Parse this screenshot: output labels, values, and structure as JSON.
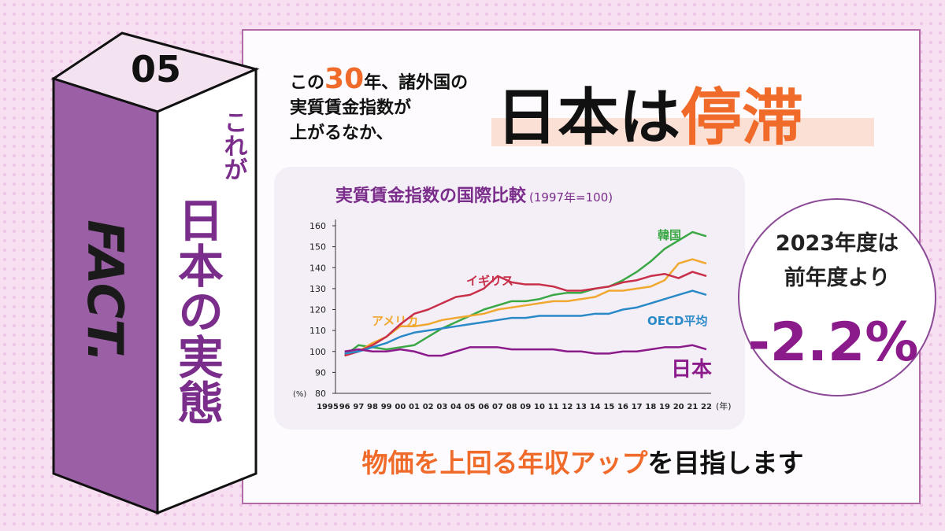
{
  "badge": {
    "number": "05",
    "side": "FACT.",
    "vertical": [
      "これが",
      "日本の実態"
    ]
  },
  "headline": {
    "lead": [
      "この",
      "30",
      "年、諸外国の",
      "実質賃金指数が",
      "上がるなか、"
    ],
    "main": [
      "日本は",
      "停滞"
    ]
  },
  "chart_data": {
    "type": "line",
    "title": "実質賃金指数の国際比較",
    "subtitle": "(1997年=100)",
    "ylabel": "(%)",
    "xlabel": "(年)",
    "categories": [
      "1995",
      "96",
      "97",
      "98",
      "99",
      "00",
      "01",
      "02",
      "03",
      "04",
      "05",
      "06",
      "07",
      "08",
      "09",
      "10",
      "11",
      "12",
      "13",
      "14",
      "15",
      "16",
      "17",
      "18",
      "19",
      "20",
      "21",
      "22"
    ],
    "ylim": [
      80,
      160
    ],
    "yticks": [
      80,
      90,
      100,
      110,
      120,
      130,
      140,
      150,
      160
    ],
    "grid": false,
    "series": [
      {
        "name": "韓国",
        "color": "#3aa845",
        "values": [
          null,
          98,
          103,
          102,
          101,
          102,
          103,
          107,
          111,
          114,
          117,
          120,
          122,
          124,
          124,
          125,
          127,
          128,
          128,
          130,
          131,
          134,
          138,
          143,
          149,
          153,
          157,
          155
        ]
      },
      {
        "name": "アメリカ",
        "color": "#f0a830",
        "values": [
          null,
          99,
          100,
          104,
          107,
          112,
          112,
          113,
          115,
          116,
          117,
          118,
          120,
          121,
          122,
          123,
          124,
          124,
          125,
          126,
          129,
          129,
          130,
          131,
          134,
          142,
          144,
          142
        ]
      },
      {
        "name": "イギリス",
        "color": "#c8304a",
        "values": [
          null,
          98,
          100,
          103,
          107,
          113,
          118,
          120,
          123,
          126,
          127,
          130,
          136,
          133,
          132,
          132,
          131,
          129,
          129,
          130,
          131,
          133,
          134,
          136,
          137,
          135,
          138,
          136
        ]
      },
      {
        "name": "OECD平均",
        "color": "#2a8ac8",
        "values": [
          null,
          99,
          100,
          102,
          104,
          107,
          109,
          110,
          111,
          112,
          113,
          114,
          115,
          116,
          116,
          117,
          117,
          117,
          117,
          118,
          118,
          120,
          121,
          123,
          125,
          127,
          129,
          127
        ]
      },
      {
        "name": "日本",
        "color": "#8b1a8b",
        "values": [
          null,
          100,
          101,
          100,
          100,
          101,
          100,
          98,
          98,
          100,
          102,
          102,
          102,
          101,
          101,
          101,
          101,
          100,
          100,
          99,
          99,
          100,
          100,
          101,
          102,
          102,
          103,
          101
        ]
      }
    ]
  },
  "callout": {
    "lines": [
      "2023年度は",
      "前年度より"
    ],
    "value": "-2.2%"
  },
  "footer": [
    "物価を上回る年収アップ",
    "を目指します"
  ]
}
